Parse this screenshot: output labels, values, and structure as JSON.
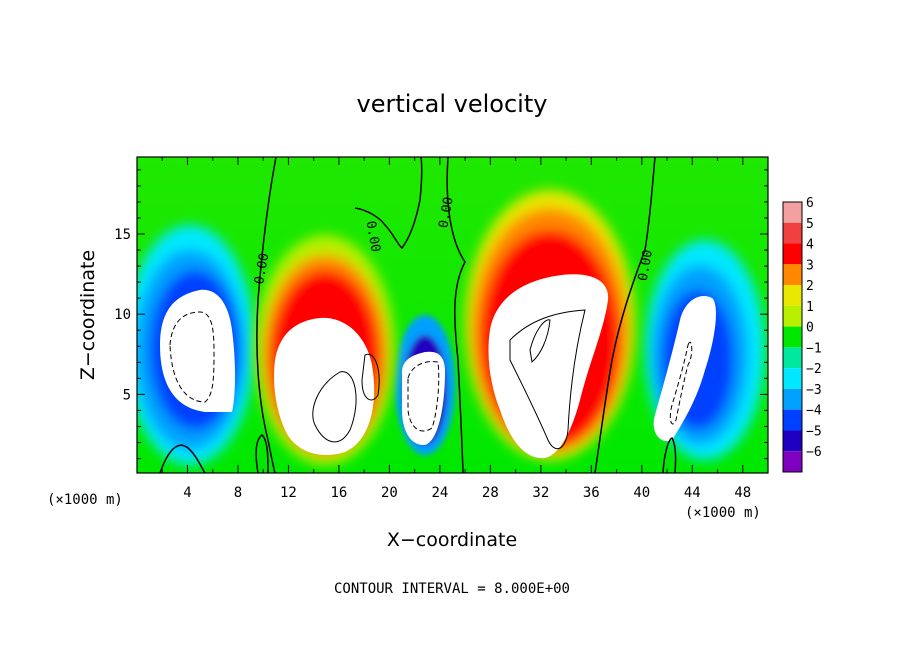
{
  "chart_data": {
    "type": "heatmap",
    "title": "vertical velocity",
    "xlabel": "X−coordinate",
    "ylabel": "Z−coordinate",
    "x_unit_label": "(×1000 m)",
    "xlim": [
      0,
      50
    ],
    "ylim": [
      0.1,
      19.8
    ],
    "x_ticks": [
      4,
      8,
      12,
      16,
      20,
      24,
      28,
      32,
      36,
      40,
      44,
      48
    ],
    "y_ticks": [
      5,
      10,
      15
    ],
    "colorbar": {
      "levels": [
        6,
        5,
        4,
        3,
        2,
        1,
        0,
        -1,
        -2,
        -3,
        -4,
        -5,
        -6
      ],
      "labels": [
        "6",
        "5",
        "4",
        "3",
        "2",
        "1",
        "0",
        "−1",
        "−2",
        "−3",
        "−4",
        "−5",
        "−6"
      ],
      "colors": [
        "#f4a0a0",
        "#f04040",
        "#ff0000",
        "#ff8800",
        "#e8e800",
        "#b8f000",
        "#00e800",
        "#00e8a0",
        "#00e8ff",
        "#00a0ff",
        "#0040ff",
        "#2000c0",
        "#8000c0"
      ]
    },
    "contour_label": "0.00",
    "contour_labels": [
      {
        "x": 10.2,
        "y": 12.8,
        "text": "0.00",
        "angle": -80
      },
      {
        "x": 18.4,
        "y": 14.8,
        "text": "0.00",
        "angle": 80
      },
      {
        "x": 24.8,
        "y": 16.3,
        "text": "0.00",
        "angle": -80
      },
      {
        "x": 40.6,
        "y": 13.0,
        "text": "0.00",
        "angle": -80
      }
    ],
    "note": "CONTOUR INTERVAL = 8.000E+00"
  }
}
